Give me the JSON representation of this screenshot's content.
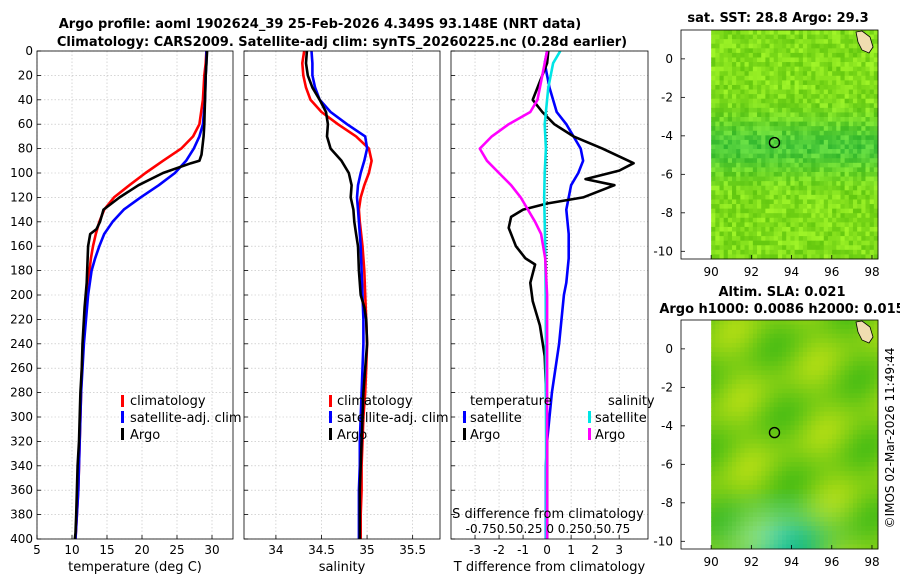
{
  "title": {
    "line1": "Argo profile: aoml 1902624_39 25-Feb-2026 4.349S 93.148E (NRT data)",
    "line2": "Climatology: CARS2009. Satellite-adj clim: synTS_20260225.nc (0.28d earlier)"
  },
  "watermark": "©IMOS 02-Mar-2026 11:49:44",
  "colors": {
    "climatology": "#ff0000",
    "satellite": "#0000ff",
    "argo": "#000000",
    "sat_salinity": "#00e5e5",
    "argo_salinity": "#ff00ff"
  },
  "chart_data": [
    {
      "id": "temperature",
      "type": "line",
      "xlabel": "temperature (deg C)",
      "ylabel": "",
      "xlim": [
        5,
        33
      ],
      "ylim": [
        400,
        0
      ],
      "xticks": [
        "5",
        "10",
        "15",
        "20",
        "25",
        "30"
      ],
      "xtick_values": [
        5,
        10,
        15,
        20,
        25,
        30
      ],
      "yticks": [
        "0",
        "20",
        "40",
        "60",
        "80",
        "100",
        "120",
        "140",
        "160",
        "180",
        "200",
        "220",
        "240",
        "260",
        "280",
        "300",
        "320",
        "340",
        "360",
        "380",
        "400"
      ],
      "ytick_values": [
        0,
        20,
        40,
        60,
        80,
        100,
        120,
        140,
        160,
        180,
        200,
        220,
        240,
        260,
        280,
        300,
        320,
        340,
        360,
        380,
        400
      ],
      "grid": true,
      "legend": [
        "climatology",
        "satellite-adj. clim",
        "Argo"
      ],
      "series": [
        {
          "name": "climatology",
          "color": "#ff0000",
          "x": [
            29.2,
            29.1,
            28.9,
            28.7,
            28.2,
            27.3,
            25.6,
            23.0,
            20.5,
            18.2,
            16.0,
            14.6,
            13.9,
            13.4,
            13.0,
            12.7,
            12.5,
            12.2,
            12.0,
            11.8,
            11.6,
            11.4,
            11.3,
            11.2,
            11.1,
            11.0,
            10.9,
            10.8,
            10.7,
            10.6,
            10.5,
            10.4
          ],
          "y": [
            0,
            10,
            20,
            40,
            60,
            70,
            80,
            90,
            100,
            110,
            120,
            130,
            140,
            150,
            160,
            170,
            180,
            190,
            200,
            220,
            240,
            260,
            280,
            300,
            320,
            340,
            360,
            370,
            380,
            390,
            400,
            400
          ]
        },
        {
          "name": "satellite-adj. clim",
          "color": "#0000ff",
          "x": [
            29.2,
            29.2,
            29.1,
            29.0,
            28.7,
            28.2,
            27.4,
            26.3,
            24.7,
            22.4,
            19.8,
            17.4,
            15.8,
            14.6,
            13.9,
            13.3,
            12.8,
            12.3,
            12.0,
            11.7,
            11.5,
            11.3,
            11.2,
            11.1,
            11.0,
            10.9,
            10.8,
            10.7,
            10.6,
            10.5
          ],
          "y": [
            0,
            10,
            20,
            40,
            60,
            70,
            80,
            90,
            100,
            110,
            120,
            130,
            140,
            150,
            160,
            170,
            180,
            200,
            220,
            240,
            260,
            280,
            300,
            320,
            340,
            360,
            370,
            380,
            390,
            400
          ]
        },
        {
          "name": "Argo",
          "color": "#000000",
          "x": [
            29.3,
            29.1,
            29.0,
            28.9,
            28.8,
            28.6,
            28.5,
            28.2,
            27.0,
            23.0,
            19.5,
            16.8,
            14.5,
            14.0,
            13.5,
            12.6,
            12.3,
            12.2,
            12.1,
            11.8,
            11.5,
            11.4,
            11.2,
            11.1,
            11.0,
            10.8,
            10.7,
            10.6,
            10.5,
            10.4
          ],
          "y": [
            0,
            20,
            40,
            60,
            70,
            80,
            85,
            90,
            92,
            100,
            110,
            120,
            130,
            140,
            146,
            150,
            160,
            175,
            190,
            210,
            240,
            260,
            280,
            300,
            320,
            340,
            360,
            380,
            395,
            400
          ]
        }
      ]
    },
    {
      "id": "salinity",
      "type": "line",
      "xlabel": "salinity",
      "xlim": [
        33.65,
        35.8
      ],
      "ylim": [
        400,
        0
      ],
      "xticks": [
        "34",
        "34.5",
        "35",
        "35.5"
      ],
      "xtick_values": [
        34,
        34.5,
        35,
        35.5
      ],
      "grid": true,
      "legend": [
        "climatology",
        "satellite-adj. clim",
        "Argo"
      ],
      "series": [
        {
          "name": "climatology",
          "color": "#ff0000",
          "x": [
            34.31,
            34.29,
            34.3,
            34.33,
            34.38,
            34.5,
            34.68,
            34.88,
            35.02,
            35.05,
            35.02,
            34.97,
            34.93,
            34.91,
            34.92,
            34.95,
            34.97,
            34.98,
            34.99,
            35.0,
            34.99,
            34.98,
            34.96,
            34.95,
            34.94,
            34.94,
            34.93,
            34.93
          ],
          "y": [
            0,
            10,
            20,
            30,
            40,
            50,
            60,
            70,
            80,
            90,
            100,
            110,
            120,
            130,
            140,
            160,
            180,
            200,
            220,
            240,
            260,
            280,
            300,
            320,
            340,
            360,
            380,
            400
          ]
        },
        {
          "name": "satellite-adj. clim",
          "color": "#0000ff",
          "x": [
            34.39,
            34.4,
            34.4,
            34.43,
            34.48,
            34.6,
            34.78,
            34.98,
            35.0,
            34.97,
            34.93,
            34.9,
            34.89,
            34.9,
            34.91,
            34.93,
            34.94,
            34.95,
            34.96,
            34.96,
            34.95,
            34.94,
            34.93,
            34.92,
            34.92,
            34.91,
            34.91,
            34.91
          ],
          "y": [
            0,
            10,
            20,
            30,
            40,
            50,
            60,
            70,
            80,
            90,
            100,
            110,
            120,
            130,
            140,
            160,
            180,
            200,
            220,
            240,
            260,
            280,
            300,
            320,
            340,
            360,
            380,
            400
          ]
        },
        {
          "name": "Argo",
          "color": "#000000",
          "x": [
            34.34,
            34.33,
            34.35,
            34.4,
            34.48,
            34.55,
            34.57,
            34.56,
            34.6,
            34.72,
            34.8,
            34.83,
            34.82,
            34.85,
            34.86,
            34.88,
            34.9,
            34.91,
            34.93,
            34.97,
            34.99,
            35.0,
            34.98,
            34.96,
            34.95,
            34.94,
            34.93,
            34.92,
            34.92,
            34.92
          ],
          "y": [
            0,
            10,
            20,
            30,
            40,
            50,
            60,
            70,
            80,
            90,
            100,
            110,
            120,
            130,
            140,
            150,
            160,
            180,
            200,
            210,
            220,
            240,
            260,
            280,
            300,
            320,
            340,
            360,
            380,
            400
          ]
        }
      ]
    },
    {
      "id": "difference",
      "type": "line",
      "xlabel": "T difference from climatology",
      "top_label": "S difference from climatology",
      "top_ticks": "-0.750.50.25 0 0.250.50.75",
      "xlim": [
        -4,
        4.2
      ],
      "ylim": [
        400,
        0
      ],
      "xticks": [
        "-3",
        "-2",
        "-1",
        "0",
        "1",
        "2",
        "3"
      ],
      "xtick_values": [
        -3,
        -2,
        -1,
        0,
        1,
        2,
        3
      ],
      "grid": true,
      "legend_headers": [
        "temperature",
        "salinity"
      ],
      "legend": [
        "satellite",
        "Argo",
        "satellite",
        "Argo"
      ],
      "series": [
        {
          "name": "temperature satellite",
          "color": "#0000ff",
          "x": [
            0.0,
            -0.1,
            0.1,
            0.4,
            0.8,
            1.1,
            1.4,
            1.5,
            1.3,
            1.0,
            0.8,
            0.9,
            0.9,
            0.8,
            0.7,
            0.6,
            0.5,
            0.35,
            0.2,
            0.1,
            0.0,
            -0.05,
            -0.05,
            -0.05
          ],
          "y": [
            0,
            10,
            30,
            50,
            60,
            70,
            80,
            90,
            100,
            110,
            130,
            150,
            170,
            190,
            200,
            220,
            240,
            260,
            280,
            300,
            320,
            340,
            380,
            400
          ]
        },
        {
          "name": "temperature Argo",
          "color": "#000000",
          "x": [
            0.05,
            0.0,
            -0.4,
            -0.6,
            -0.2,
            0.3,
            1.1,
            2.3,
            3.6,
            3.0,
            1.6,
            2.8,
            1.5,
            0.0,
            -1.0,
            -1.5,
            -1.6,
            -1.3,
            -0.9,
            -0.5,
            -0.7,
            -0.6,
            -0.3,
            -0.1,
            0.0,
            0.0,
            0.0
          ],
          "y": [
            0,
            10,
            30,
            40,
            50,
            60,
            70,
            80,
            92,
            98,
            105,
            110,
            120,
            125,
            130,
            136,
            145,
            160,
            170,
            175,
            190,
            205,
            225,
            250,
            300,
            350,
            400
          ]
        },
        {
          "name": "salinity satellite",
          "color": "#00e5e5",
          "x": [
            0.55,
            0.25,
            0.05,
            -0.05,
            -0.1,
            -0.05,
            -0.1,
            -0.12,
            -0.1,
            -0.08,
            -0.06,
            -0.05,
            -0.05,
            -0.04,
            -0.04,
            -0.04
          ],
          "y": [
            0,
            10,
            30,
            50,
            60,
            80,
            100,
            120,
            140,
            160,
            200,
            240,
            280,
            320,
            360,
            400
          ]
        },
        {
          "name": "salinity Argo",
          "color": "#ff00ff",
          "x": [
            0.0,
            -0.2,
            -0.4,
            -0.7,
            -1.6,
            -2.3,
            -2.8,
            -2.5,
            -2.0,
            -1.5,
            -1.1,
            -0.8,
            -0.5,
            -0.25,
            -0.08,
            0.0,
            0.0,
            0.0
          ],
          "y": [
            0,
            20,
            40,
            50,
            60,
            70,
            80,
            90,
            100,
            110,
            120,
            130,
            140,
            150,
            170,
            200,
            300,
            400
          ]
        }
      ]
    },
    {
      "id": "sat-sst-map",
      "type": "heatmap",
      "title": "sat. SST: 28.8  Argo: 29.3",
      "xlim": [
        88.5,
        98.3
      ],
      "ylim": [
        -10.4,
        1.5
      ],
      "xticks": [
        "90",
        "92",
        "94",
        "96",
        "98"
      ],
      "xtick_values": [
        90,
        92,
        94,
        96,
        98
      ],
      "yticks": [
        "0",
        "-2",
        "-4",
        "-6",
        "-8",
        "-10"
      ],
      "ytick_values": [
        0,
        -2,
        -4,
        -6,
        -8,
        -10
      ],
      "marker": {
        "lon": 93.15,
        "lat": -4.35
      }
    },
    {
      "id": "altim-sla-map",
      "type": "heatmap",
      "title": "Altim. SLA: 0.021",
      "subtitle": "Argo h1000: 0.0086 h2000: 0.015",
      "xlim": [
        88.5,
        98.3
      ],
      "ylim": [
        -10.4,
        1.5
      ],
      "xticks": [
        "90",
        "92",
        "94",
        "96",
        "98"
      ],
      "xtick_values": [
        90,
        92,
        94,
        96,
        98
      ],
      "yticks": [
        "0",
        "-2",
        "-4",
        "-6",
        "-8",
        "-10"
      ],
      "ytick_values": [
        0,
        -2,
        -4,
        -6,
        -8,
        -10
      ],
      "marker": {
        "lon": 93.15,
        "lat": -4.35
      }
    }
  ]
}
